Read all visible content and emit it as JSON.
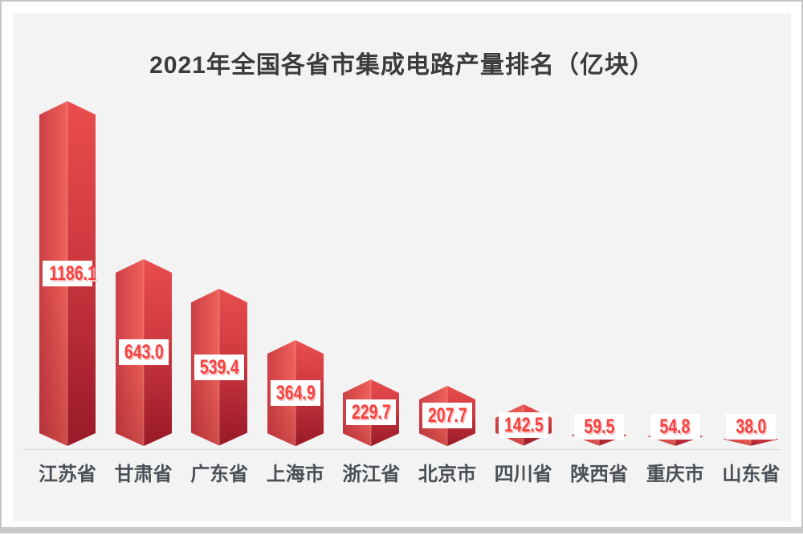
{
  "title": "2021年全国各省市集成电路产量排名（亿块）",
  "chart_data": {
    "type": "bar",
    "title": "2021年全国各省市集成电路产量排名（亿块）",
    "categories": [
      "江苏省",
      "甘肃省",
      "广东省",
      "上海市",
      "浙江省",
      "北京市",
      "四川省",
      "陕西省",
      "重庆市",
      "山东省"
    ],
    "values": [
      1186.1,
      643.0,
      539.4,
      364.9,
      229.7,
      207.7,
      142.5,
      59.5,
      54.8,
      38.0
    ],
    "value_labels": [
      "1186.1",
      "643.0",
      "539.4",
      "364.9",
      "229.7",
      "207.7",
      "142.5",
      "59.5",
      "54.8",
      "38.0"
    ],
    "unit": "亿块",
    "xlabel": "",
    "ylabel": "",
    "ylim": [
      0,
      1250
    ],
    "grid": false,
    "legend": null,
    "bar_style": "3d-prism, pointed top, v-notch bottom, white value band centered in bar"
  },
  "colors": {
    "page_bg": "#ffffff",
    "panel_bg": "#f3f3f4",
    "page_border": "#c6c6c6",
    "bottom_strip": "#c9c9c9",
    "axis_line": "#d9d9d9",
    "title_color": "#3b3b3b",
    "category_color": "#4a5055",
    "value_color": "#f5413f",
    "value_shadow": "#f9bcbc",
    "value_box_bg": "#ffffff",
    "bar_left_from": "#cd4046",
    "bar_left_to": "#ef6159",
    "bar_right_from": "#e94d4d",
    "bar_right_to": "#ac2130",
    "bar_shade": "rgba(90,0,15,0.22)",
    "ridge_highlight": "rgba(255,255,255,0.28)"
  }
}
